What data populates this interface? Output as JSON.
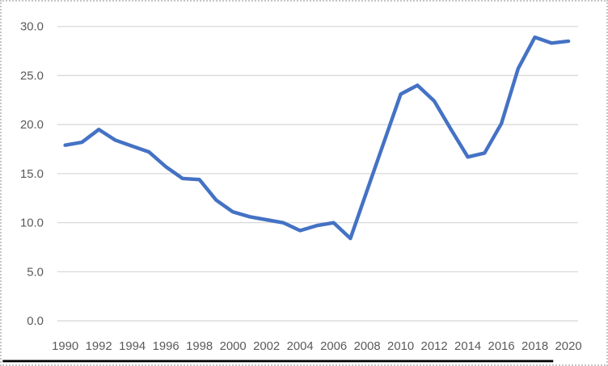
{
  "chart_data": {
    "type": "line",
    "x": [
      1990,
      1991,
      1992,
      1993,
      1994,
      1995,
      1996,
      1997,
      1998,
      1999,
      2000,
      2001,
      2002,
      2003,
      2004,
      2005,
      2006,
      2007,
      2008,
      2009,
      2010,
      2011,
      2012,
      2013,
      2014,
      2015,
      2016,
      2017,
      2018,
      2019,
      2020
    ],
    "values": [
      17.9,
      18.2,
      19.5,
      18.4,
      17.8,
      17.2,
      15.7,
      14.5,
      14.4,
      12.3,
      11.1,
      10.6,
      10.3,
      10.0,
      9.2,
      9.7,
      10.0,
      8.4,
      13.3,
      18.2,
      23.1,
      24.0,
      22.4,
      19.5,
      16.7,
      17.1,
      20.1,
      25.7,
      28.9,
      28.3,
      28.5
    ],
    "ylim": [
      0,
      30
    ],
    "ytick_step": 5,
    "ytick_labels": [
      "0.0",
      "5.0",
      "10.0",
      "15.0",
      "20.0",
      "25.0",
      "30.0"
    ],
    "xtick_labels": [
      "1990",
      "1992",
      "1994",
      "1996",
      "1998",
      "2000",
      "2002",
      "2004",
      "2006",
      "2008",
      "2010",
      "2012",
      "2014",
      "2016",
      "2018",
      "2020"
    ],
    "grid": true,
    "legend": false,
    "line_color": "#4472C4",
    "grid_color": "#D9D9D9",
    "label_color": "#595959",
    "background": "#FFFFFF",
    "bottom_rule_color": "#000000"
  }
}
